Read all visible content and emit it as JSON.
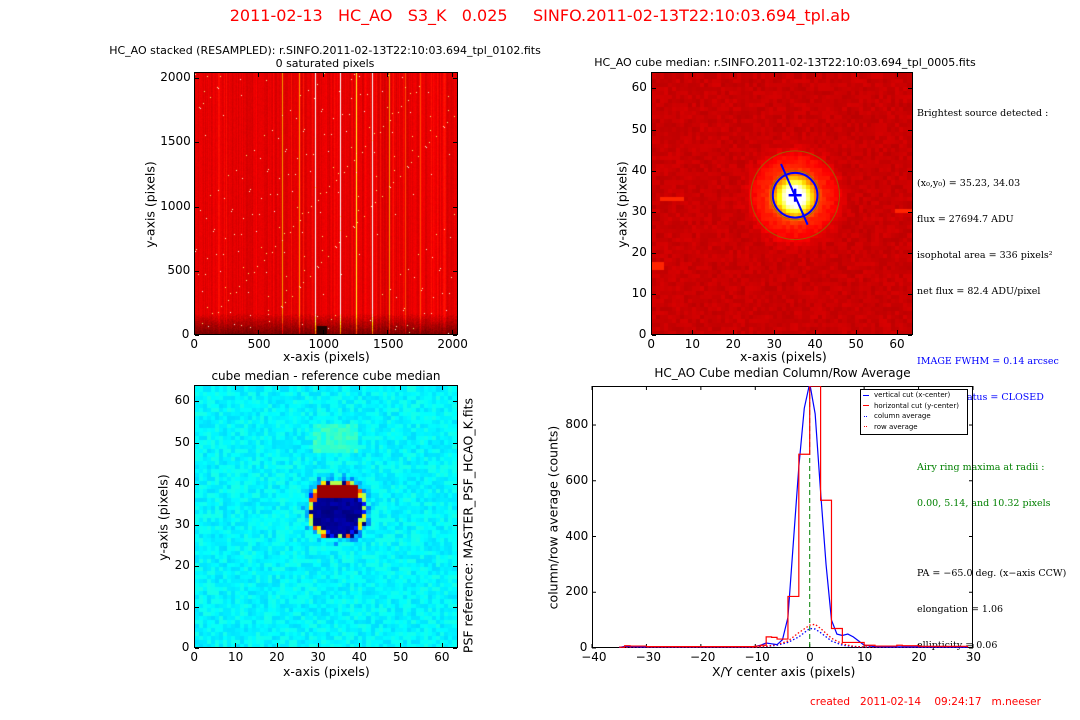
{
  "figure": {
    "suptitle": "2011-02-13   HC_AO   S3_K   0.025     SINFO.2011-02-13T22:10:03.694_tpl.ab",
    "footer": "created   2011-02-14    09:24:17   m.neeser",
    "title_color": "#ff0000"
  },
  "chart_data": [
    {
      "type": "heatmap",
      "name": "stacked-frame",
      "title": "HC_AO stacked (RESAMPLED): r.SINFO.2011-02-13T22:10:03.694_tpl_0102.fits\n0 saturated pixels",
      "xlabel": "x-axis (pixels)",
      "ylabel": "y-axis (pixels)",
      "xlim": [
        0,
        2048
      ],
      "ylim": [
        0,
        2048
      ],
      "xticks": [
        "0",
        "500",
        "1000",
        "1500",
        "2000"
      ],
      "yticks": [
        "0",
        "500",
        "1000",
        "1500",
        "2000"
      ],
      "xtick_values": [
        0,
        500,
        1000,
        1500,
        2000
      ],
      "ytick_values": [
        0,
        500,
        1000,
        1500,
        2000
      ],
      "colormap": "hot",
      "bright_columns": [
        {
          "x": 680,
          "level": "orange"
        },
        {
          "x": 810,
          "level": "orange"
        },
        {
          "x": 940,
          "level": "white"
        },
        {
          "x": 1130,
          "level": "white"
        },
        {
          "x": 1255,
          "level": "yellow"
        },
        {
          "x": 1385,
          "level": "white"
        },
        {
          "x": 1520,
          "level": "orange"
        },
        {
          "x": 1640,
          "level": "red-orange"
        },
        {
          "x": 1760,
          "level": "red-orange"
        }
      ]
    },
    {
      "type": "heatmap",
      "name": "cube-median",
      "title": "HC_AO cube median: r.SINFO.2011-02-13T22:10:03.694_tpl_0005.fits",
      "xlabel": "x-axis (pixels)",
      "ylabel": "y-axis (pixels)",
      "xlim": [
        0,
        64
      ],
      "ylim": [
        0,
        64
      ],
      "xticks": [
        "0",
        "10",
        "20",
        "30",
        "40",
        "50",
        "60"
      ],
      "yticks": [
        "0",
        "10",
        "20",
        "30",
        "40",
        "50",
        "60"
      ],
      "xtick_values": [
        0,
        10,
        20,
        30,
        40,
        50,
        60
      ],
      "ytick_values": [
        0,
        10,
        20,
        30,
        40,
        50,
        60
      ],
      "colormap": "hot",
      "source_center": [
        35.23,
        34.03
      ],
      "fwhm_circle_radius_pix": 5.5,
      "airy_ring_radii_pix": [
        0.0,
        5.14,
        10.32
      ],
      "position_angle_deg": -65.0,
      "overlay_color": "#0000ff",
      "ring_color": "#808000"
    },
    {
      "type": "heatmap",
      "name": "difference-map",
      "title": "cube median - reference cube median",
      "xlabel": "x-axis (pixels)",
      "ylabel": "y-axis (pixels)",
      "right_label": "PSF reference: MASTER_PSF_HCAO_K.fits",
      "xlim": [
        0,
        64
      ],
      "ylim": [
        0,
        64
      ],
      "xticks": [
        "0",
        "10",
        "20",
        "30",
        "40",
        "50",
        "60"
      ],
      "yticks": [
        "0",
        "10",
        "20",
        "30",
        "40",
        "50",
        "60"
      ],
      "xtick_values": [
        0,
        10,
        20,
        30,
        40,
        50,
        60
      ],
      "ytick_values": [
        0,
        10,
        20,
        30,
        40,
        50,
        60
      ],
      "colormap": "jet",
      "center": [
        35,
        34
      ]
    },
    {
      "type": "line",
      "name": "column-row-average",
      "title": "HC_AO Cube median Column/Row Average",
      "xlabel": "X/Y center axis (pixels)",
      "ylabel": "column/row average (counts)",
      "xlim": [
        -40,
        30
      ],
      "ylim": [
        0,
        940
      ],
      "xticks": [
        "−40",
        "−30",
        "−20",
        "−10",
        "0",
        "10",
        "20",
        "30"
      ],
      "yticks": [
        "0",
        "200",
        "400",
        "600",
        "800"
      ],
      "xtick_values": [
        -40,
        -30,
        -20,
        -10,
        0,
        10,
        20,
        30
      ],
      "ytick_values": [
        0,
        200,
        400,
        600,
        800
      ],
      "center_line": {
        "x": 0,
        "color": "#008000",
        "style": "dashed"
      },
      "legend": {
        "position": "top-right",
        "entries": [
          {
            "label": "vertical cut (x-center)",
            "color": "#0000ff",
            "style": "solid"
          },
          {
            "label": "horizontal cut (y-center)",
            "color": "#ff0000",
            "style": "solid"
          },
          {
            "label": "column average",
            "color": "#0000ff",
            "style": "dotted"
          },
          {
            "label": "row average",
            "color": "#ff0000",
            "style": "dotted"
          }
        ]
      },
      "series": [
        {
          "name": "vertical cut (x-center)",
          "color": "#0000ff",
          "style": "solid",
          "step": false,
          "x": [
            -35,
            -34,
            -33,
            -30,
            -25,
            -20,
            -15,
            -11,
            -10,
            -9,
            -8,
            -7,
            -6,
            -5,
            -4,
            -3,
            -2,
            -1,
            0,
            1,
            2,
            3,
            4,
            5,
            6,
            7,
            8,
            9,
            10,
            12,
            15,
            20,
            25,
            29
          ],
          "y": [
            2,
            6,
            5,
            4,
            4,
            4,
            4,
            4,
            6,
            10,
            18,
            15,
            12,
            30,
            110,
            380,
            650,
            860,
            950,
            840,
            560,
            300,
            100,
            50,
            45,
            50,
            40,
            25,
            10,
            5,
            4,
            4,
            4,
            3
          ]
        },
        {
          "name": "horizontal cut (y-center)",
          "color": "#ff0000",
          "style": "solid",
          "step": true,
          "x": [
            -35,
            -34,
            -33,
            -30,
            -25,
            -20,
            -15,
            -11,
            -10,
            -9,
            -8,
            -7,
            -6,
            -5,
            -4,
            -3,
            -2,
            -1,
            0,
            1,
            2,
            3,
            4,
            5,
            6,
            7,
            8,
            9,
            10,
            12,
            15,
            16,
            17,
            20,
            25,
            29
          ],
          "y": [
            3,
            8,
            7,
            5,
            5,
            5,
            5,
            5,
            7,
            10,
            40,
            38,
            32,
            32,
            185,
            185,
            695,
            695,
            940,
            940,
            530,
            530,
            70,
            70,
            20,
            20,
            20,
            20,
            10,
            7,
            7,
            10,
            8,
            6,
            6,
            3
          ]
        },
        {
          "name": "column average",
          "color": "#0000ff",
          "style": "dotted",
          "step": false,
          "x": [
            -35,
            -30,
            -20,
            -10,
            -8,
            -6,
            -4,
            -2,
            0,
            1,
            2,
            4,
            6,
            8,
            10,
            15,
            20,
            29
          ],
          "y": [
            2,
            2,
            2,
            2,
            5,
            10,
            20,
            40,
            70,
            68,
            55,
            25,
            10,
            5,
            3,
            2,
            2,
            2
          ]
        },
        {
          "name": "row average",
          "color": "#ff0000",
          "style": "dotted",
          "step": false,
          "x": [
            -35,
            -30,
            -20,
            -10,
            -8,
            -6,
            -4,
            -2,
            0,
            1,
            2,
            4,
            6,
            8,
            10,
            15,
            20,
            29
          ],
          "y": [
            3,
            3,
            3,
            3,
            6,
            12,
            25,
            55,
            82,
            85,
            70,
            35,
            15,
            6,
            4,
            3,
            3,
            3
          ]
        }
      ]
    }
  ],
  "info_panel": {
    "heading": "Brightest source detected :",
    "lines_black_1": [
      "(x₀,y₀) = 35.23, 34.03",
      "flux = 27694.7 ADU",
      "isophotal area = 336 pixels²",
      "net flux = 82.4 ADU/pixel"
    ],
    "lines_blue": [
      "IMAGE FWHM = 0.14 arcsec",
      "AO loop status = CLOSED"
    ],
    "lines_green": [
      "Airy ring maxima at radii :",
      "0.00, 5.14, and 10.32 pixels"
    ],
    "lines_black_2": [
      "PA = −65.0 deg. (x−axis CCW)",
      "elongation = 1.06",
      "ellipticity = 0.06"
    ]
  }
}
